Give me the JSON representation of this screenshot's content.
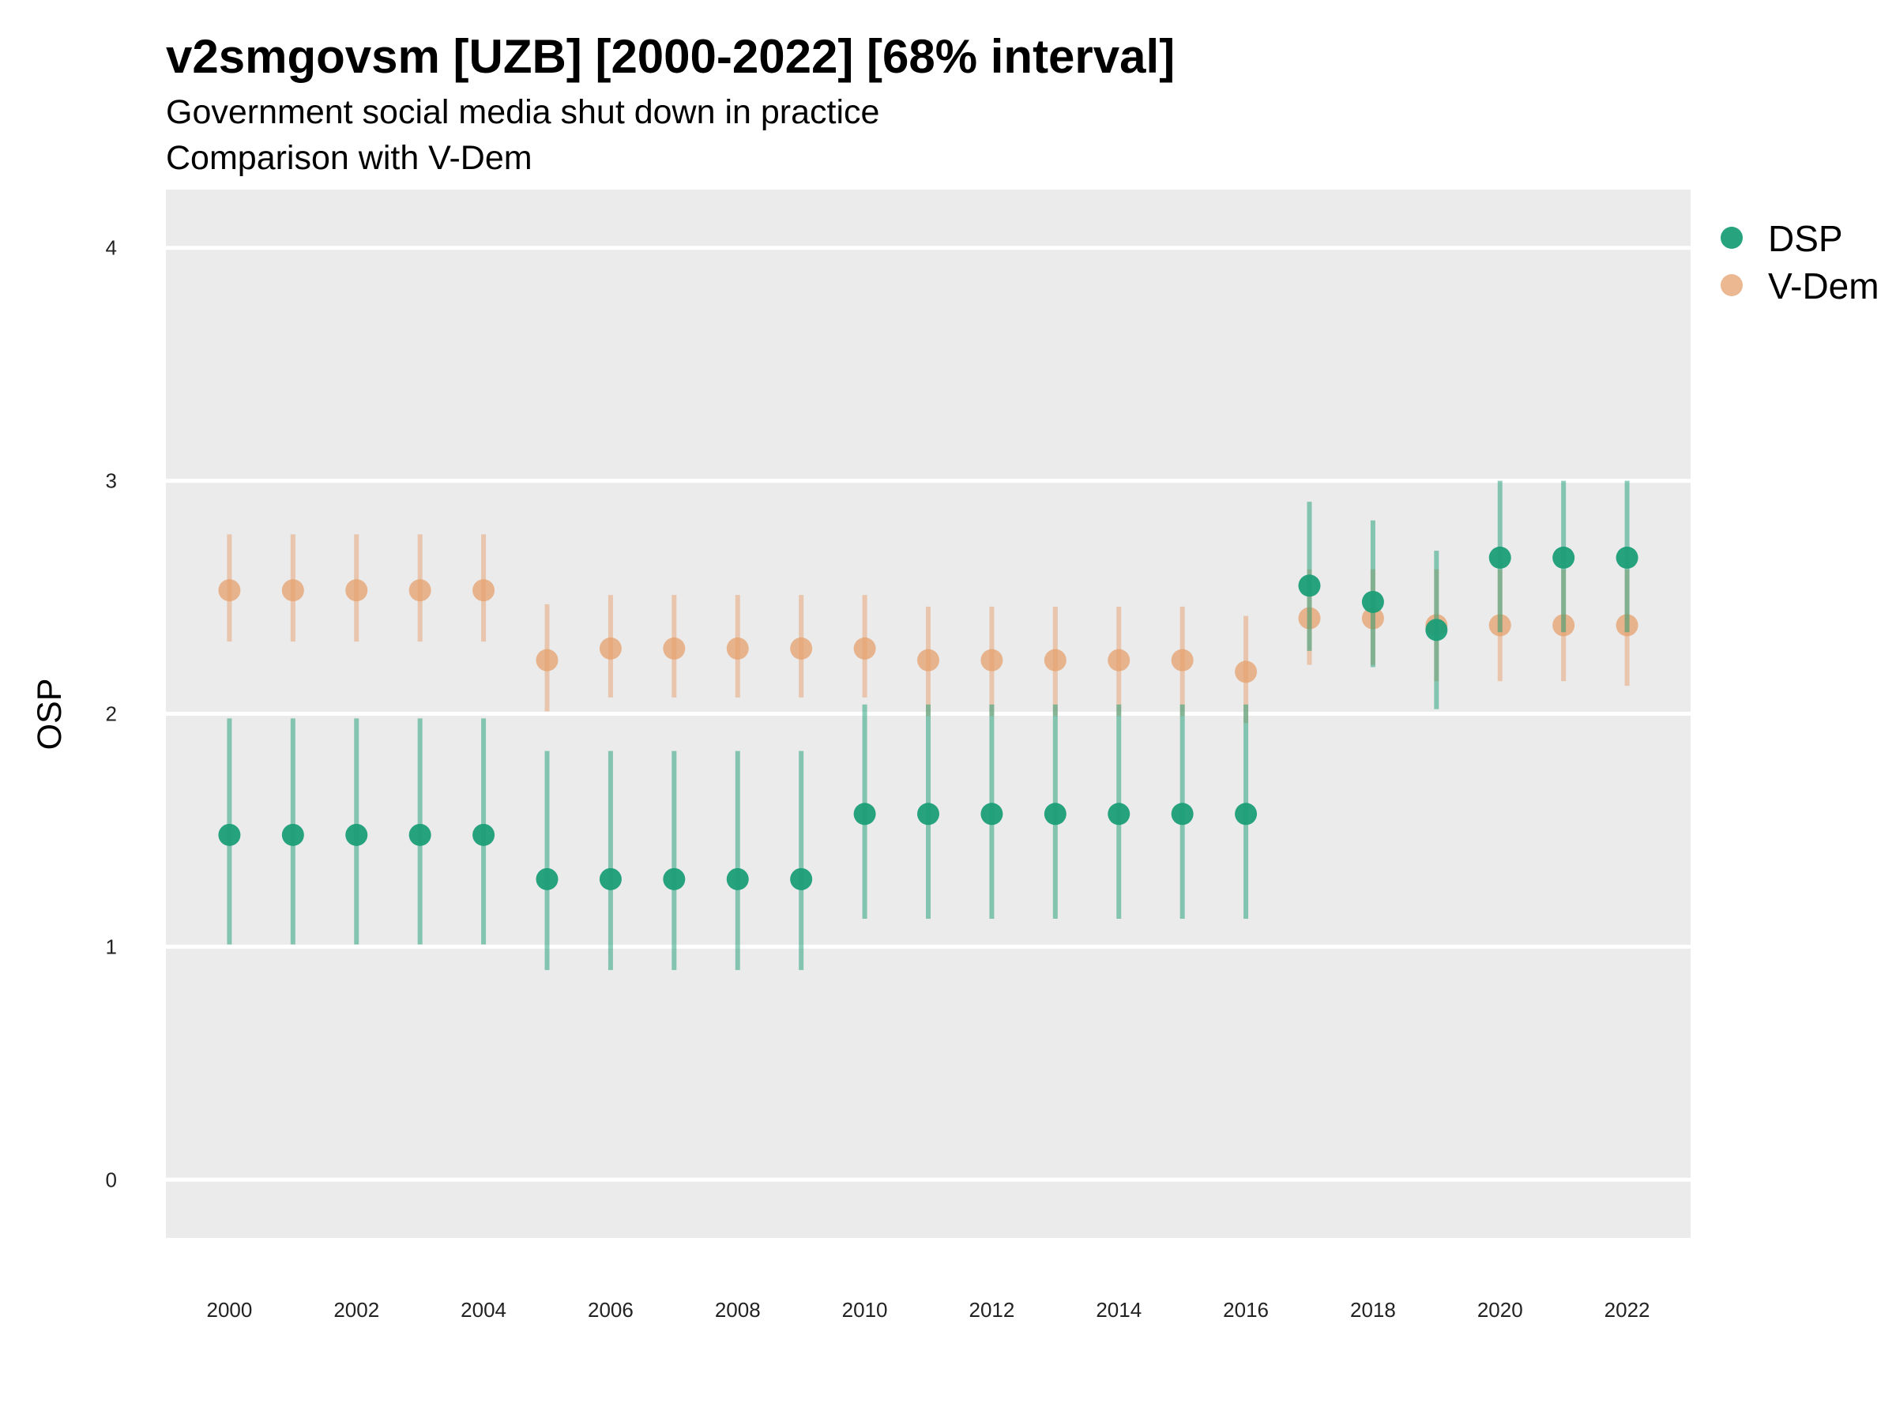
{
  "title": "v2smgovsm [UZB] [2000-2022] [68% interval]",
  "subtitle_line1": "Government social media shut down in practice",
  "subtitle_line2": "Comparison with V-Dem",
  "chart_data": {
    "type": "scatter",
    "ylabel": "OSP",
    "xlabel": "",
    "ylim": [
      -0.25,
      4.25
    ],
    "y_ticks": [
      0,
      1,
      2,
      3,
      4
    ],
    "x_ticks": [
      2000,
      2002,
      2004,
      2006,
      2008,
      2010,
      2012,
      2014,
      2016,
      2018,
      2020,
      2022
    ],
    "grid": true,
    "legend_position": "right",
    "x": [
      2000,
      2001,
      2002,
      2003,
      2004,
      2005,
      2006,
      2007,
      2008,
      2009,
      2010,
      2011,
      2012,
      2013,
      2014,
      2015,
      2016,
      2017,
      2018,
      2019,
      2020,
      2021,
      2022
    ],
    "series": [
      {
        "name": "DSP",
        "color": "#1b9e77",
        "values": [
          1.48,
          1.48,
          1.48,
          1.48,
          1.48,
          1.29,
          1.29,
          1.29,
          1.29,
          1.29,
          1.57,
          1.57,
          1.57,
          1.57,
          1.57,
          1.57,
          1.57,
          2.55,
          2.48,
          2.36,
          2.67,
          2.67,
          2.67
        ],
        "lower": [
          1.01,
          1.01,
          1.01,
          1.01,
          1.01,
          0.9,
          0.9,
          0.9,
          0.9,
          0.9,
          1.12,
          1.12,
          1.12,
          1.12,
          1.12,
          1.12,
          1.12,
          2.27,
          2.2,
          2.02,
          2.35,
          2.35,
          2.35
        ],
        "upper": [
          1.98,
          1.98,
          1.98,
          1.98,
          1.98,
          1.84,
          1.84,
          1.84,
          1.84,
          1.84,
          2.04,
          2.04,
          2.04,
          2.04,
          2.04,
          2.04,
          2.04,
          2.91,
          2.83,
          2.7,
          3.0,
          3.0,
          3.0
        ]
      },
      {
        "name": "V-Dem",
        "color": "#e6a06e",
        "values": [
          2.53,
          2.53,
          2.53,
          2.53,
          2.53,
          2.23,
          2.28,
          2.28,
          2.28,
          2.28,
          2.28,
          2.23,
          2.23,
          2.23,
          2.23,
          2.23,
          2.18,
          2.41,
          2.41,
          2.38,
          2.38,
          2.38,
          2.38
        ],
        "lower": [
          2.31,
          2.31,
          2.31,
          2.31,
          2.31,
          2.01,
          2.07,
          2.07,
          2.07,
          2.07,
          2.07,
          1.99,
          1.99,
          1.99,
          1.99,
          1.99,
          1.96,
          2.21,
          2.21,
          2.14,
          2.14,
          2.14,
          2.12
        ],
        "upper": [
          2.77,
          2.77,
          2.77,
          2.77,
          2.77,
          2.47,
          2.51,
          2.51,
          2.51,
          2.51,
          2.51,
          2.46,
          2.46,
          2.46,
          2.46,
          2.46,
          2.42,
          2.62,
          2.62,
          2.62,
          2.62,
          2.62,
          2.62
        ]
      }
    ]
  }
}
